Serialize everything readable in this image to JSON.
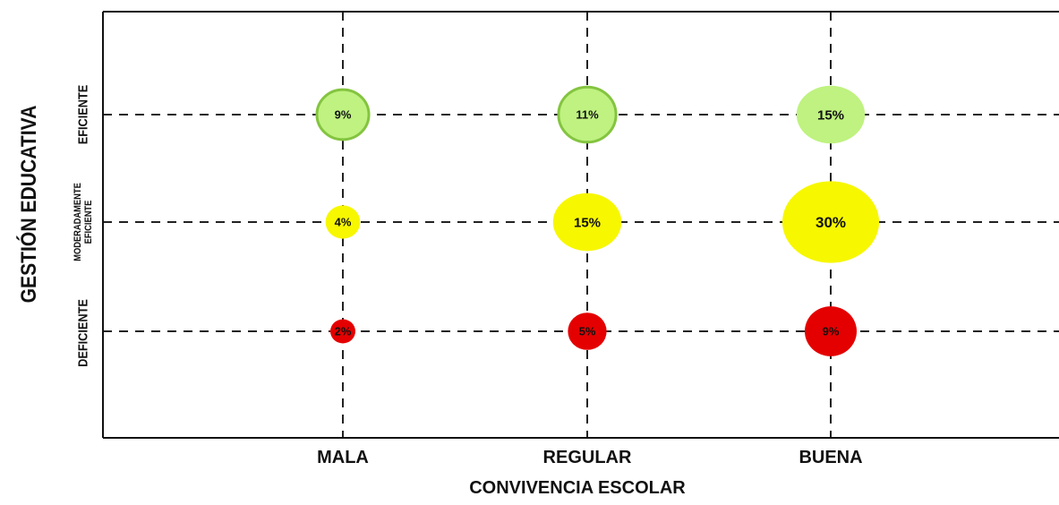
{
  "chart_data": {
    "type": "scatter",
    "title": "",
    "xlabel": "CONVIVENCIA ESCOLAR",
    "ylabel": "GESTIÓN EDUCATIVA",
    "x_categories": [
      "MALA",
      "REGULAR",
      "BUENA"
    ],
    "y_categories": [
      "DEFICIENTE",
      "MODERADAMENTE EFICIENTE",
      "EFICIENTE"
    ],
    "y_tick_lines": {
      "DEFICIENTE": [
        "DEFICIENTE"
      ],
      "MODERADAMENTE EFICIENTE": [
        "MODERADAMENTE",
        "EFICIENTE"
      ],
      "EFICIENTE": [
        "EFICIENTE"
      ]
    },
    "grid": true,
    "points": [
      {
        "x": "MALA",
        "y": "EFICIENTE",
        "value": 9,
        "label": "9%"
      },
      {
        "x": "REGULAR",
        "y": "EFICIENTE",
        "value": 11,
        "label": "11%"
      },
      {
        "x": "BUENA",
        "y": "EFICIENTE",
        "value": 15,
        "label": "15%"
      },
      {
        "x": "MALA",
        "y": "MODERADAMENTE EFICIENTE",
        "value": 4,
        "label": "4%"
      },
      {
        "x": "REGULAR",
        "y": "MODERADAMENTE EFICIENTE",
        "value": 15,
        "label": "15%"
      },
      {
        "x": "BUENA",
        "y": "MODERADAMENTE EFICIENTE",
        "value": 30,
        "label": "30%"
      },
      {
        "x": "MALA",
        "y": "DEFICIENTE",
        "value": 2,
        "label": "2%"
      },
      {
        "x": "REGULAR",
        "y": "DEFICIENTE",
        "value": 5,
        "label": "5%"
      },
      {
        "x": "BUENA",
        "y": "DEFICIENTE",
        "value": 9,
        "label": "9%"
      }
    ],
    "row_colors": {
      "EFICIENTE": "#bff280",
      "MODERADAMENTE EFICIENTE": "#f7f700",
      "DEFICIENTE": "#e40000"
    },
    "outline_colors": {
      "EFICIENTE": "#84c440"
    }
  }
}
